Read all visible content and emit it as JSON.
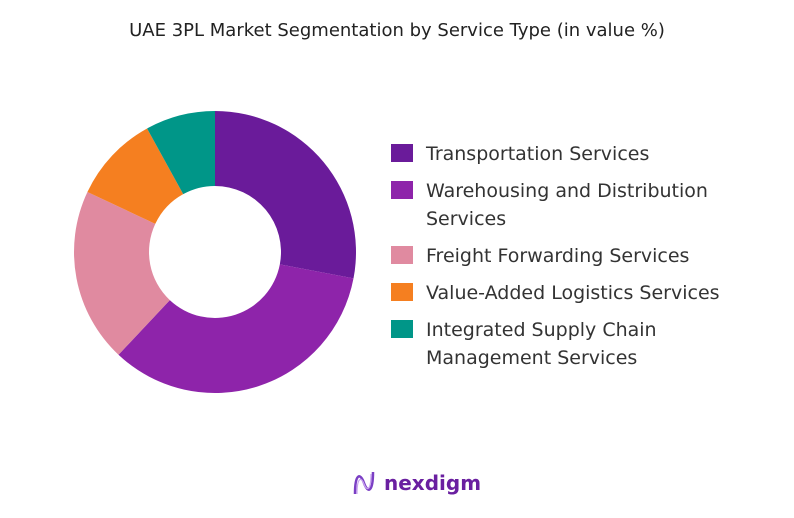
{
  "chart_data": {
    "type": "pie",
    "variant": "donut",
    "title": "UAE 3PL Market Segmentation by Service Type (in value %)",
    "unit": "%",
    "legend_position": "right",
    "series": [
      {
        "name": "Transportation Services",
        "value": 28,
        "color": "#6a1b9a"
      },
      {
        "name": "Warehousing and Distribution Services",
        "value": 34,
        "color": "#8e24aa"
      },
      {
        "name": "Freight Forwarding Services",
        "value": 20,
        "color": "#e08aa0"
      },
      {
        "name": "Value-Added Logistics Services",
        "value": 10,
        "color": "#f57f20"
      },
      {
        "name": "Integrated Supply Chain Management Services",
        "value": 8,
        "color": "#009688"
      }
    ]
  },
  "branding": {
    "logo_text": "nexdigm",
    "color": "#6a1fa0"
  }
}
